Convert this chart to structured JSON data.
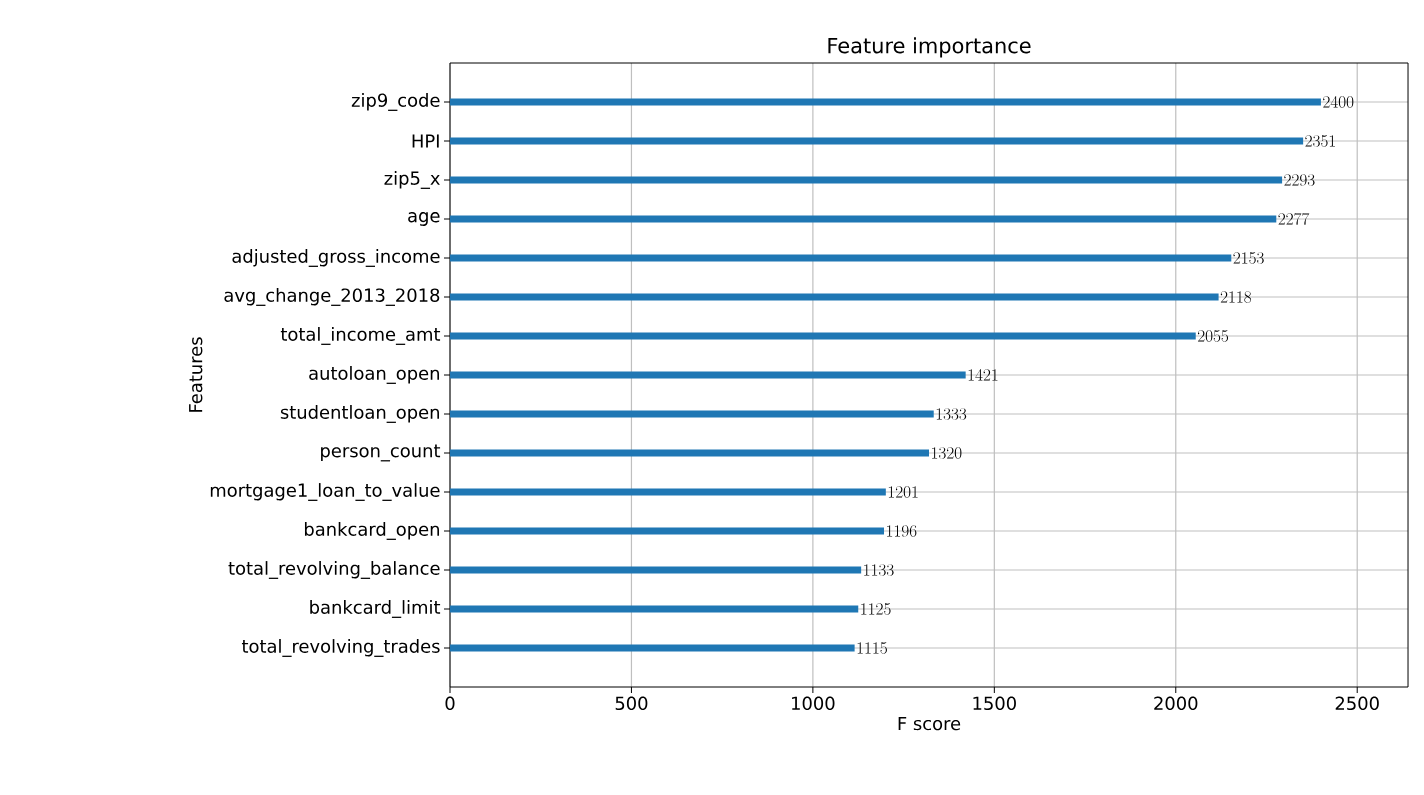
{
  "chart_data": {
    "type": "bar",
    "orientation": "horizontal",
    "title": "Feature importance",
    "xlabel": "F score",
    "ylabel": "Features",
    "categories": [
      "zip9_code",
      "HPI",
      "zip5_x",
      "age",
      "adjusted_gross_income",
      "avg_change_2013_2018",
      "total_income_amt",
      "autoloan_open",
      "studentloan_open",
      "person_count",
      "mortgage1_loan_to_value",
      "bankcard_open",
      "total_revolving_balance",
      "bankcard_limit",
      "total_revolving_trades"
    ],
    "values": [
      2400,
      2351,
      2293,
      2277,
      2153,
      2118,
      2055,
      1421,
      1333,
      1320,
      1201,
      1196,
      1133,
      1125,
      1115
    ],
    "color": "#1f77b4",
    "xlim": [
      0,
      2640
    ],
    "xticks": [
      0,
      500,
      1000,
      1500,
      2000,
      2500
    ],
    "grid": true,
    "data_labels": true
  }
}
